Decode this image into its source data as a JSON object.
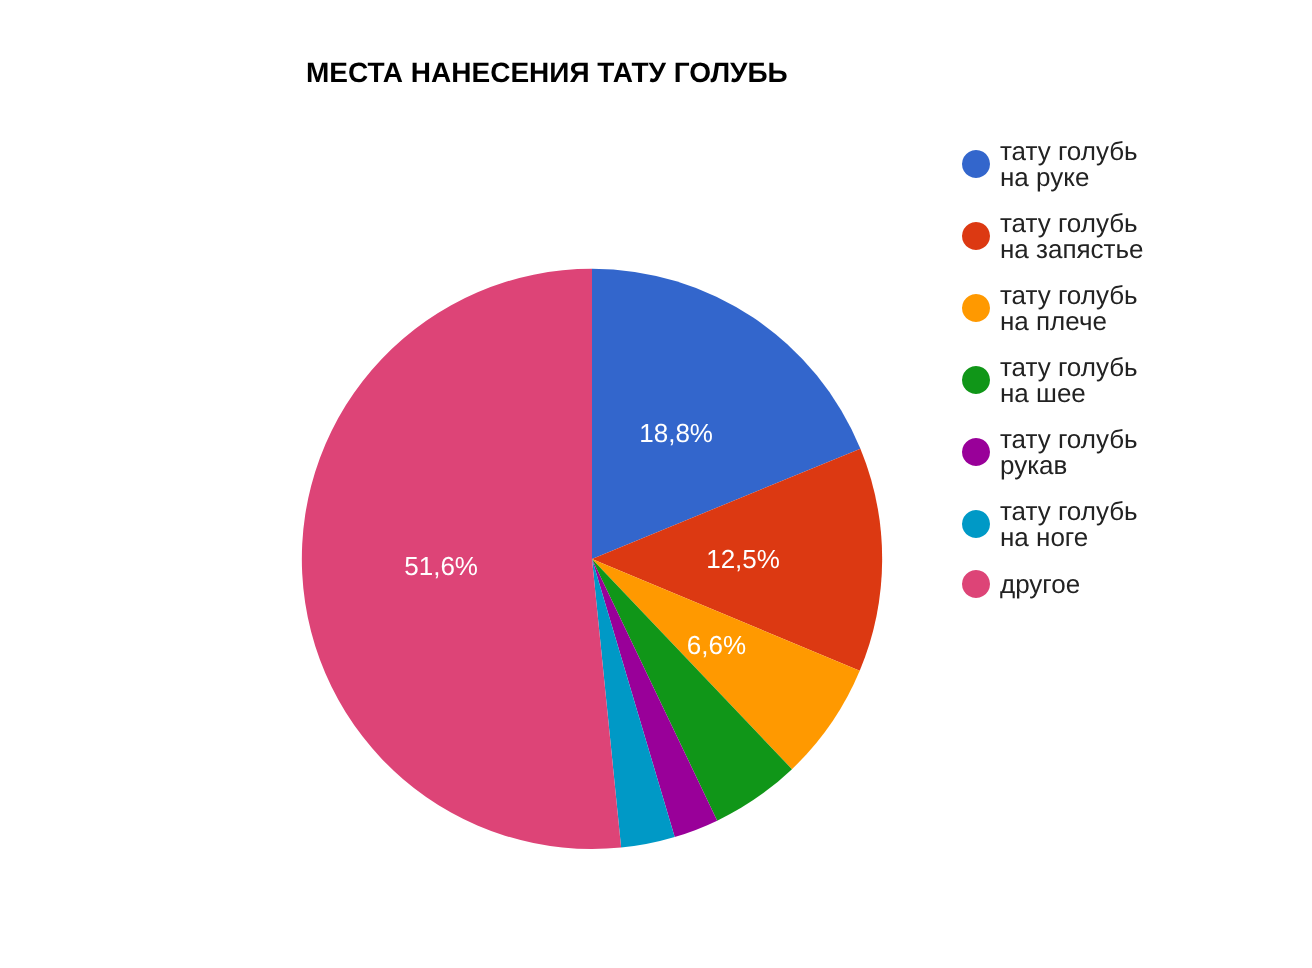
{
  "chart_data": {
    "type": "pie",
    "title": "МЕСТА НАНЕСЕНИЯ ТАТУ ГОЛУБЬ",
    "categories": [
      "тату голубь на руке",
      "тату голубь на запястье",
      "тату голубь на плече",
      "тату голубь на шее",
      "тату голубь рукав",
      "тату голубь на ноге",
      "другое"
    ],
    "values": [
      18.8,
      12.5,
      6.6,
      5.0,
      2.5,
      3.0,
      51.6
    ],
    "colors": [
      "#3366cc",
      "#dc3912",
      "#ff9900",
      "#109618",
      "#990099",
      "#0099c6",
      "#dd4477"
    ],
    "value_labels": [
      "18,8%",
      "12,5%",
      "6,6%",
      null,
      null,
      null,
      "51,6%"
    ],
    "legend": "top right"
  }
}
